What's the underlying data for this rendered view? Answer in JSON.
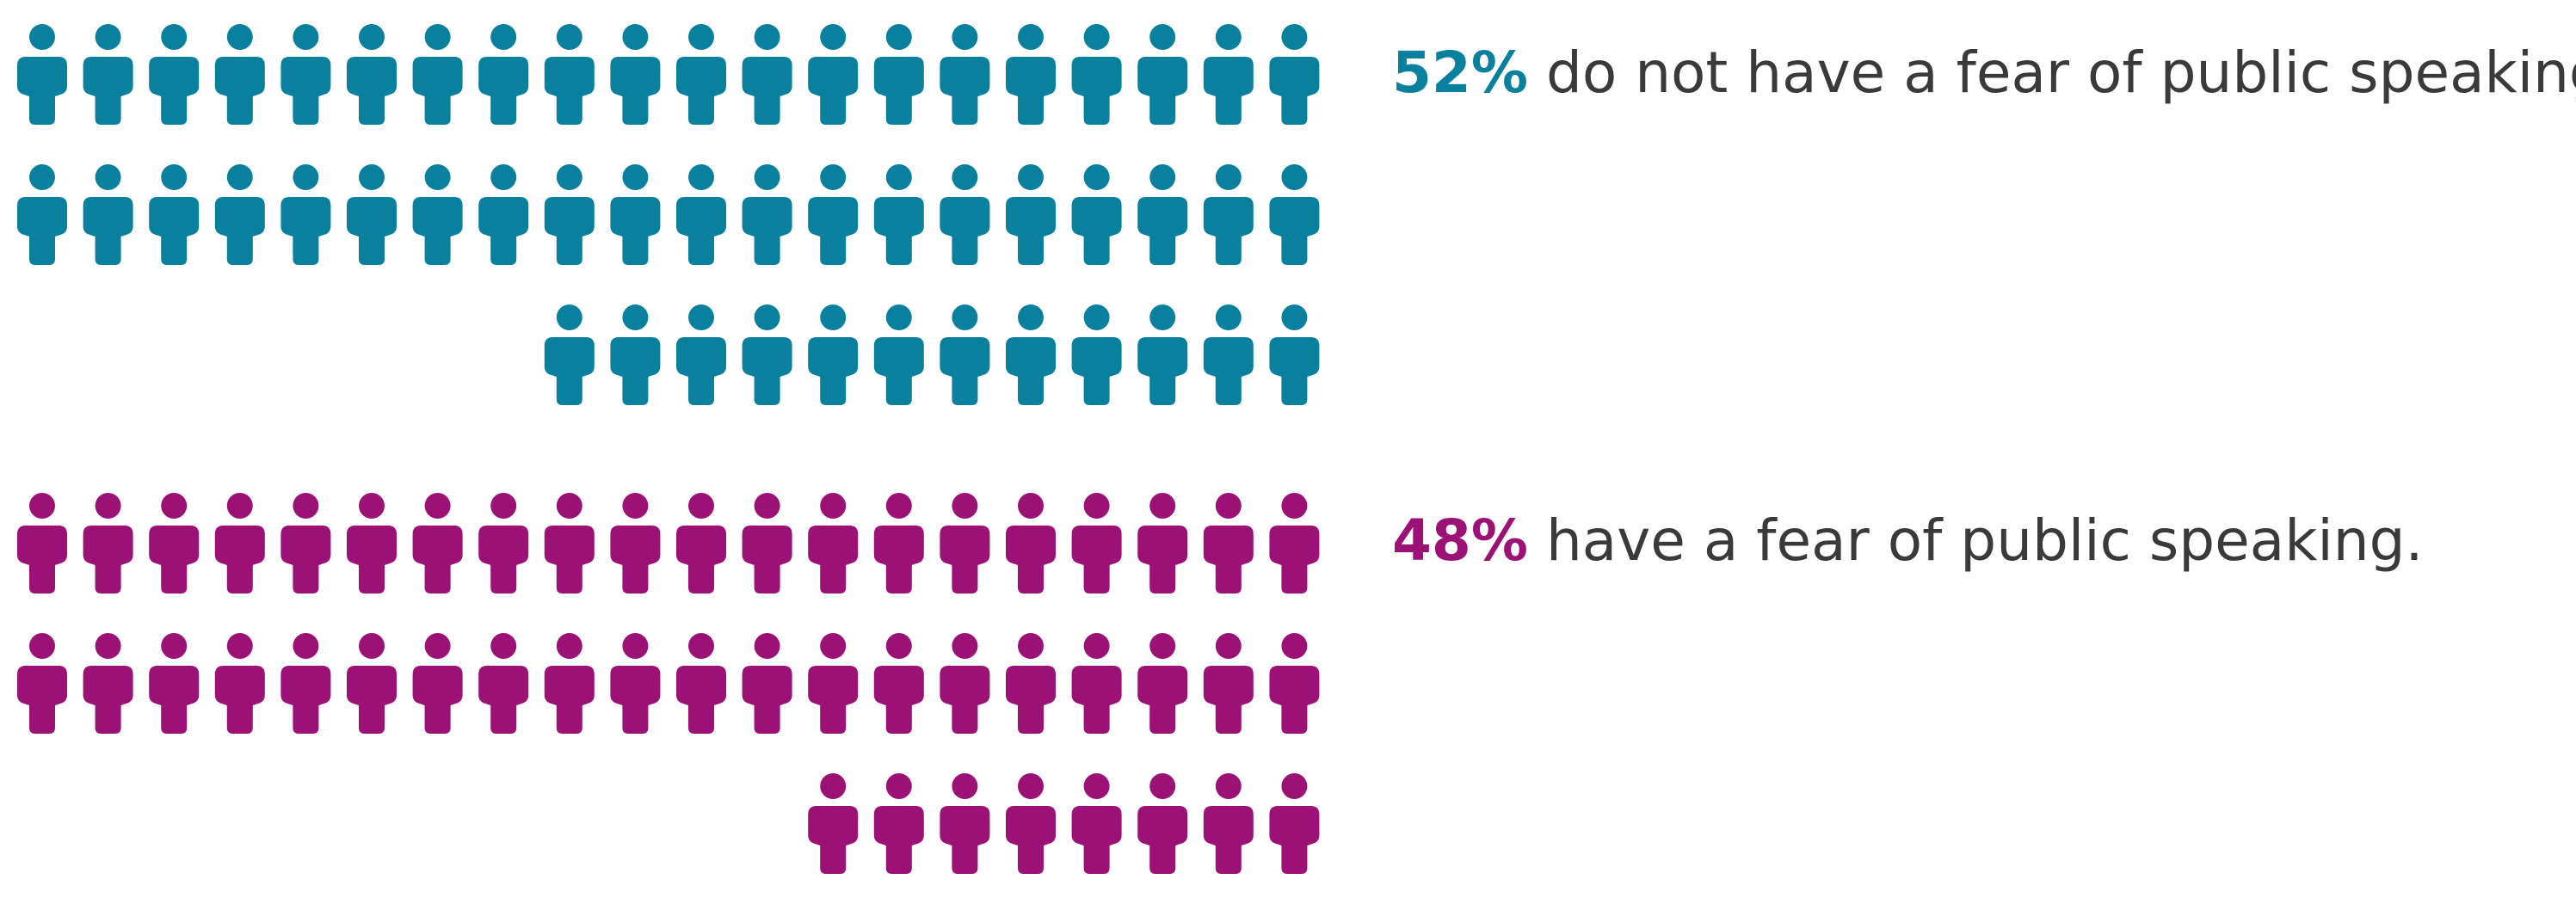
{
  "chart_data": {
    "type": "pictograph",
    "unit": "person-icon",
    "groups": [
      {
        "percent_label": "52%",
        "description": "do not have a fear of public speaking.",
        "value": 52,
        "icon_count": 52,
        "color": "#0a809f"
      },
      {
        "percent_label": "48%",
        "description": "have a fear of public speaking.",
        "value": 48,
        "icon_count": 48,
        "color": "#9c1176"
      }
    ]
  }
}
